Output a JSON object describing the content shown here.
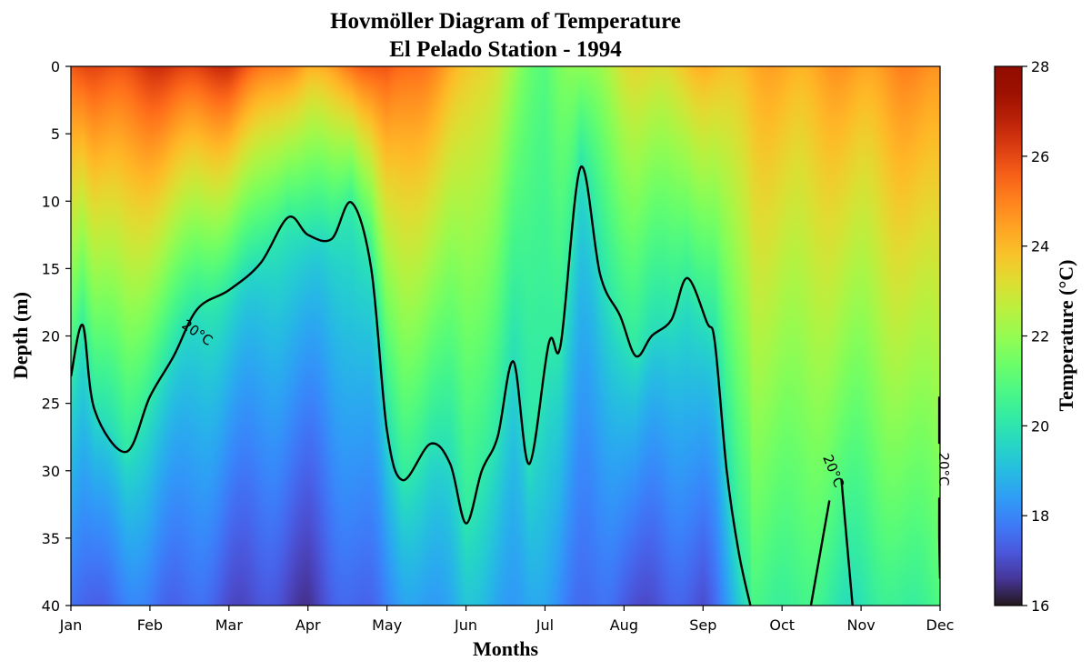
{
  "chart_data": {
    "type": "heatmap",
    "title": "Hovmöller Diagram of Temperature",
    "subtitle": "El Pelado Station - 1994",
    "xlabel": "Months",
    "ylabel": "Depth (m)",
    "x_ticks": [
      "Jan",
      "Feb",
      "Mar",
      "Apr",
      "May",
      "Jun",
      "Jul",
      "Aug",
      "Sep",
      "Oct",
      "Nov",
      "Dec"
    ],
    "y_ticks": [
      0,
      5,
      10,
      15,
      20,
      25,
      30,
      35,
      40
    ],
    "ylim": [
      40,
      0
    ],
    "colorbar": {
      "label": "Temperature (°C)",
      "range": [
        16,
        28
      ],
      "ticks": [
        16,
        18,
        20,
        22,
        24,
        26,
        28
      ],
      "colormap": "turbo"
    },
    "contour": {
      "level": 20,
      "label": "20°C",
      "color": "#000000"
    },
    "surface_temperature_by_month": [
      {
        "month": "Jan",
        "surface": 25.7,
        "depth_40": 17.2
      },
      {
        "month": "Feb",
        "surface": 26.3,
        "depth_40": 17.6
      },
      {
        "month": "Mar",
        "surface": 26.4,
        "depth_40": 17.0
      },
      {
        "month": "Apr",
        "surface": 24.2,
        "depth_40": 16.6
      },
      {
        "month": "May",
        "surface": 26.0,
        "depth_40": 17.8
      },
      {
        "month": "Jun",
        "surface": 24.0,
        "depth_40": 18.8
      },
      {
        "month": "Jul",
        "surface": 21.0,
        "depth_40": 18.2
      },
      {
        "month": "Aug",
        "surface": 23.0,
        "depth_40": 17.0
      },
      {
        "month": "Sep",
        "surface": 24.0,
        "depth_40": 17.0
      },
      {
        "month": "Oct",
        "surface": 24.3,
        "depth_40": 21.0
      },
      {
        "month": "Nov",
        "surface": 24.6,
        "depth_40": 21.2
      },
      {
        "month": "Dec",
        "surface": 25.0,
        "depth_40": 21.5
      }
    ],
    "isotherm_20C_depth": [
      [
        0.0,
        23.0
      ],
      [
        0.15,
        19.2
      ],
      [
        0.3,
        25.5
      ],
      [
        0.7,
        28.6
      ],
      [
        1.0,
        24.5
      ],
      [
        1.3,
        21.5
      ],
      [
        1.6,
        18.0
      ],
      [
        2.0,
        16.6
      ],
      [
        2.4,
        14.6
      ],
      [
        2.75,
        11.2
      ],
      [
        3.0,
        12.5
      ],
      [
        3.3,
        12.8
      ],
      [
        3.55,
        10.1
      ],
      [
        3.8,
        15.0
      ],
      [
        4.0,
        27.0
      ],
      [
        4.2,
        30.7
      ],
      [
        4.55,
        28.0
      ],
      [
        4.8,
        29.5
      ],
      [
        5.0,
        33.9
      ],
      [
        5.2,
        30.0
      ],
      [
        5.4,
        27.5
      ],
      [
        5.6,
        21.9
      ],
      [
        5.8,
        29.5
      ],
      [
        6.05,
        20.5
      ],
      [
        6.2,
        20.6
      ],
      [
        6.45,
        7.5
      ],
      [
        6.7,
        15.5
      ],
      [
        6.95,
        18.5
      ],
      [
        7.15,
        21.5
      ],
      [
        7.35,
        20.0
      ],
      [
        7.6,
        18.8
      ],
      [
        7.8,
        15.7
      ],
      [
        8.05,
        19.0
      ],
      [
        8.15,
        20.5
      ],
      [
        8.3,
        30.0
      ],
      [
        8.45,
        36.0
      ],
      [
        8.6,
        40.0
      ]
    ]
  },
  "colors": {
    "contour_line": "#000000",
    "frame": "#000000"
  }
}
